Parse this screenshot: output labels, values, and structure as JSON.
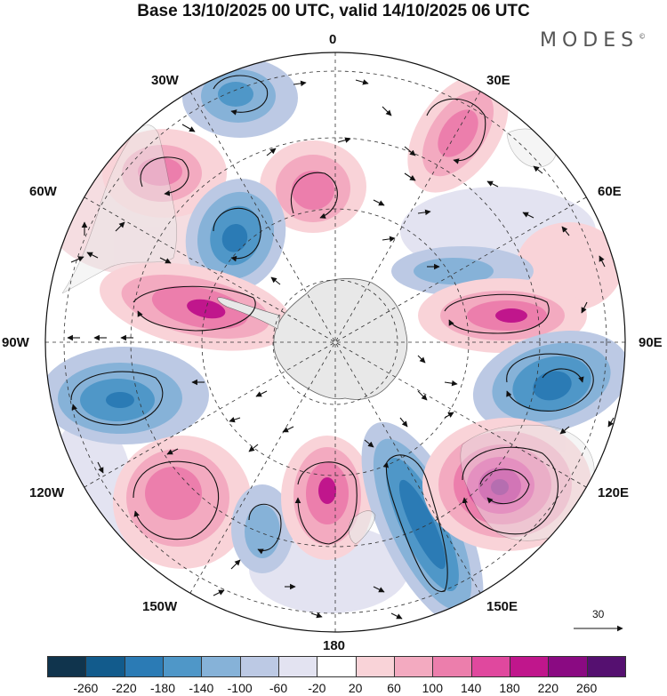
{
  "title": "Base 13/10/2025 00 UTC, valid 14/10/2025 06 UTC",
  "brand": "MODES",
  "brand_mark": "©",
  "longitude_labels": {
    "n0": "0",
    "e30": "30E",
    "e60": "60E",
    "e90": "90E",
    "e120": "120E",
    "e150": "150E",
    "s180": "180",
    "w150": "150W",
    "w120": "120W",
    "w90": "90W",
    "w60": "60W",
    "w30": "30W"
  },
  "reference_vector": "30",
  "colorbar": {
    "ticks": [
      "-260",
      "-220",
      "-180",
      "-140",
      "-100",
      "-60",
      "-20",
      "20",
      "60",
      "100",
      "140",
      "180",
      "220",
      "260"
    ],
    "colors": [
      "#10344d",
      "#125b8c",
      "#2b7bb5",
      "#4f97c8",
      "#86b2d8",
      "#bcc9e4",
      "#e3e3f1",
      "#ffffff",
      "#f9d3d8",
      "#f3aac0",
      "#ec7eac",
      "#e0489e",
      "#c0168c",
      "#8a0a82",
      "#551070"
    ]
  }
}
